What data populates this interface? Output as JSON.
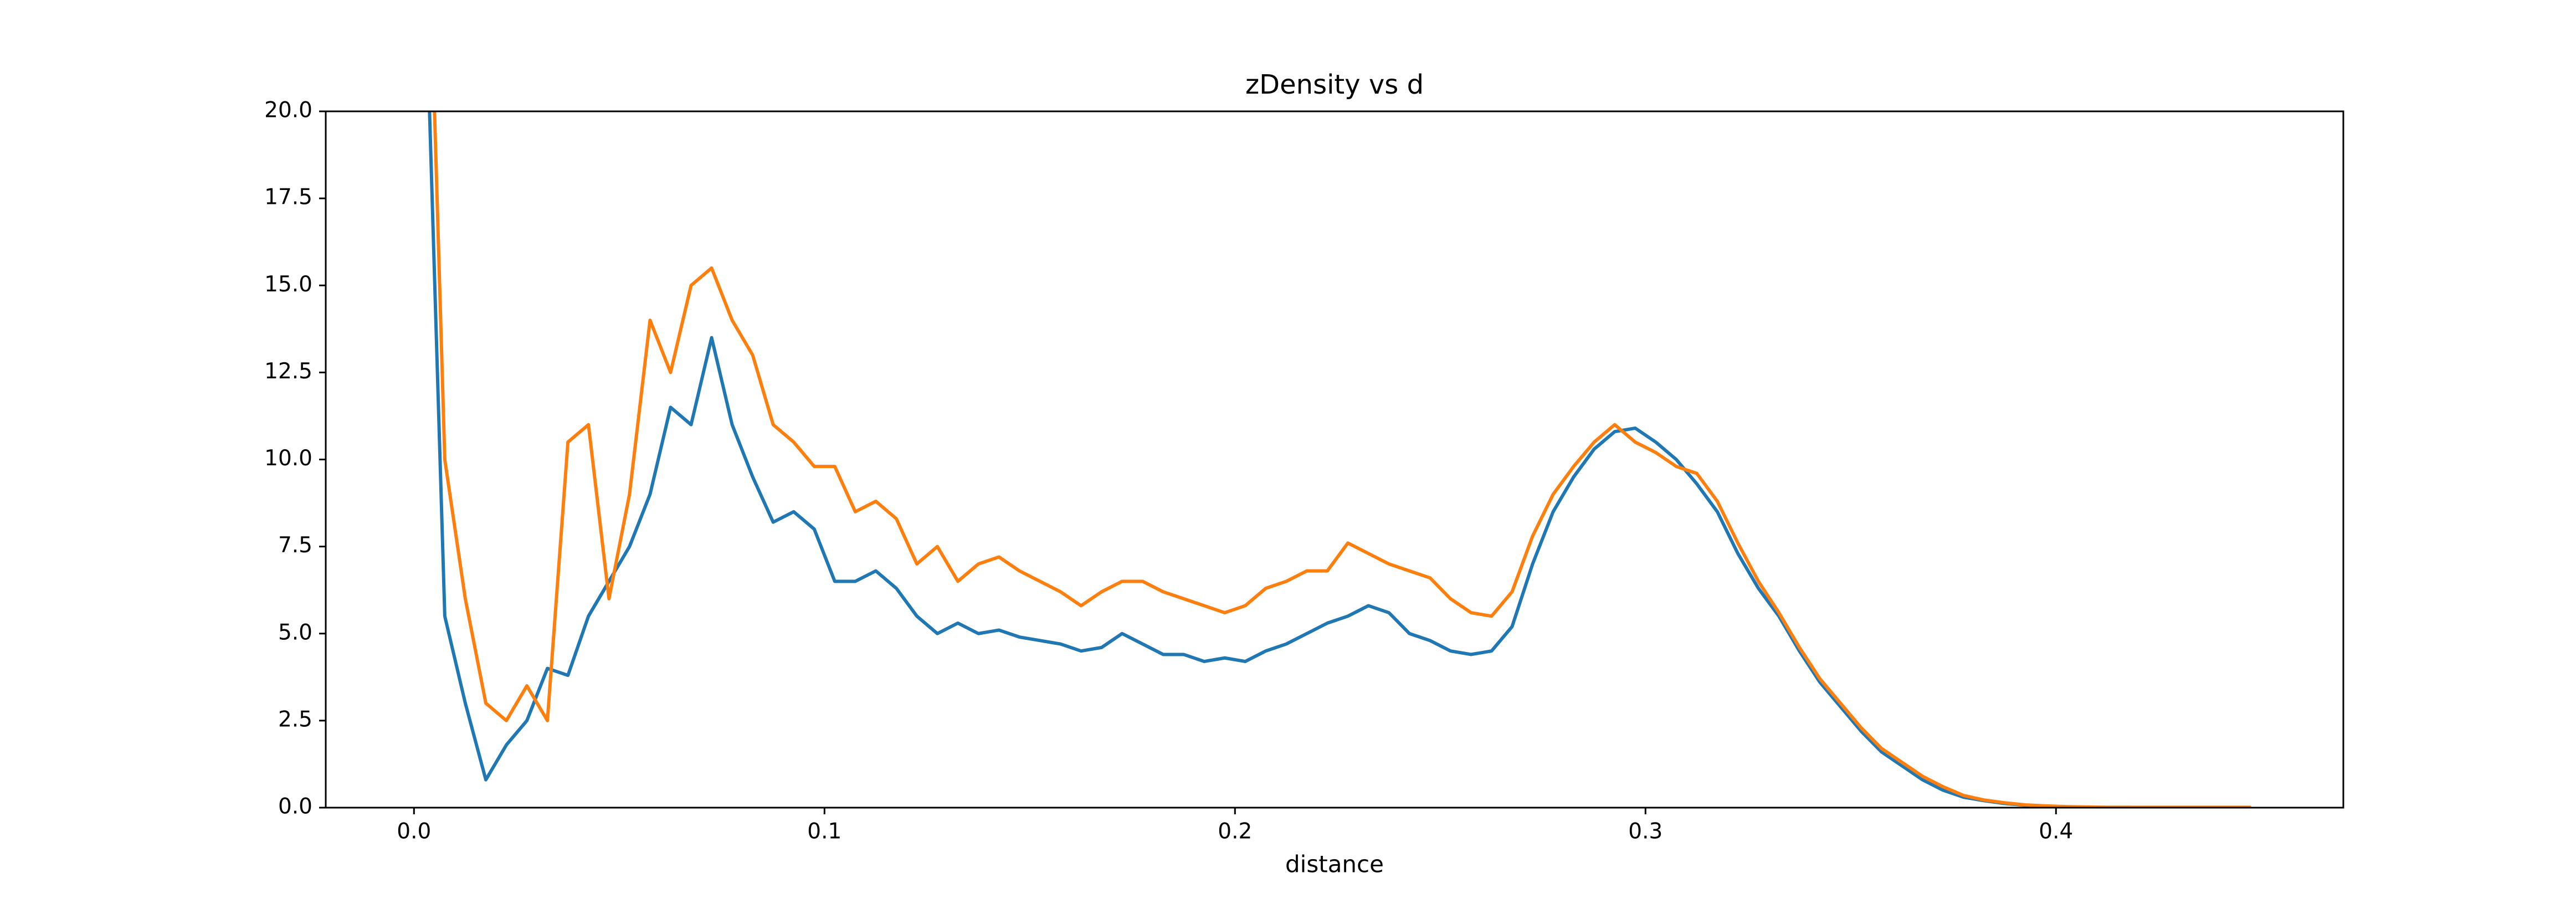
{
  "chart_data": {
    "type": "line",
    "title": "zDensity vs d",
    "x_label": "distance",
    "x": [
      0.0025,
      0.0075,
      0.0125,
      0.0175,
      0.0225,
      0.0275,
      0.0325,
      0.0375,
      0.0425,
      0.0475,
      0.0525,
      0.0575,
      0.0625,
      0.0675,
      0.0725,
      0.0775,
      0.0825,
      0.0875,
      0.0925,
      0.0975,
      0.1025,
      0.1075,
      0.1125,
      0.1175,
      0.1225,
      0.1275,
      0.1325,
      0.1375,
      0.1425,
      0.1475,
      0.1525,
      0.1575,
      0.1625,
      0.1675,
      0.1725,
      0.1775,
      0.1825,
      0.1875,
      0.1925,
      0.1975,
      0.2025,
      0.2075,
      0.2125,
      0.2175,
      0.2225,
      0.2275,
      0.2325,
      0.2375,
      0.2425,
      0.2475,
      0.2525,
      0.2575,
      0.2625,
      0.2675,
      0.2725,
      0.2775,
      0.2825,
      0.2875,
      0.2925,
      0.2975,
      0.3025,
      0.3075,
      0.3125,
      0.3175,
      0.3225,
      0.3275,
      0.3325,
      0.3375,
      0.3425,
      0.3475,
      0.3525,
      0.3575,
      0.3625,
      0.3675,
      0.3725,
      0.3775,
      0.3825,
      0.3875,
      0.3925,
      0.3975,
      0.4025,
      0.4075,
      0.4125,
      0.4175,
      0.4225,
      0.4275,
      0.4325,
      0.4375,
      0.4425,
      0.4475
    ],
    "series": [
      {
        "color": "#1f77b4",
        "values": [
          25,
          5.5,
          3.0,
          0.8,
          1.8,
          2.5,
          4.0,
          3.8,
          5.5,
          6.5,
          7.5,
          9.0,
          11.5,
          11.0,
          13.5,
          11.0,
          9.5,
          8.2,
          8.5,
          8.0,
          6.5,
          6.5,
          6.8,
          6.3,
          5.5,
          5.0,
          5.3,
          5.0,
          5.1,
          4.9,
          4.8,
          4.7,
          4.5,
          4.6,
          5.0,
          4.7,
          4.4,
          4.4,
          4.2,
          4.3,
          4.2,
          4.5,
          4.7,
          5.0,
          5.3,
          5.5,
          5.8,
          5.6,
          5.0,
          4.8,
          4.5,
          4.4,
          4.5,
          5.2,
          7.0,
          8.5,
          9.5,
          10.3,
          10.8,
          10.9,
          10.5,
          10.0,
          9.3,
          8.5,
          7.3,
          6.3,
          5.5,
          4.5,
          3.6,
          2.9,
          2.2,
          1.6,
          1.2,
          0.8,
          0.5,
          0.3,
          0.2,
          0.12,
          0.07,
          0.04,
          0.02,
          0.01,
          0.01,
          0.01,
          0,
          0,
          0,
          0,
          0,
          0
        ]
      },
      {
        "color": "#ff7f0e",
        "values": [
          30,
          10.0,
          6.0,
          3.0,
          2.5,
          3.5,
          2.5,
          10.5,
          11.0,
          6.0,
          9.0,
          14.0,
          12.5,
          15.0,
          15.5,
          14.0,
          13.0,
          11.0,
          10.5,
          9.8,
          9.8,
          8.5,
          8.8,
          8.3,
          7.0,
          7.5,
          6.5,
          7.0,
          7.2,
          6.8,
          6.5,
          6.2,
          5.8,
          6.2,
          6.5,
          6.5,
          6.2,
          6.0,
          5.8,
          5.6,
          5.8,
          6.3,
          6.5,
          6.8,
          6.8,
          7.6,
          7.3,
          7.0,
          6.8,
          6.6,
          6.0,
          5.6,
          5.5,
          6.2,
          7.8,
          9.0,
          9.8,
          10.5,
          11.0,
          10.5,
          10.2,
          9.8,
          9.6,
          8.8,
          7.6,
          6.5,
          5.6,
          4.6,
          3.7,
          3.0,
          2.3,
          1.7,
          1.3,
          0.9,
          0.6,
          0.35,
          0.22,
          0.14,
          0.08,
          0.05,
          0.03,
          0.02,
          0.01,
          0.01,
          0.01,
          0.01,
          0.01,
          0.01,
          0.01,
          0.01
        ]
      }
    ],
    "xlim": [
      -0.0215,
      0.47
    ],
    "xticks": [
      {
        "value": 0,
        "label": "0.0"
      },
      0.1,
      0.2,
      0.3,
      0.4
    ],
    "ylim": [
      0,
      20
    ],
    "yticks": [
      {
        "value": 0,
        "label": "0.0"
      },
      2.5,
      {
        "value": 5,
        "label": "5.0"
      },
      7.5,
      {
        "value": 10,
        "label": "10.0"
      },
      12.5,
      {
        "value": 15,
        "label": "15.0"
      },
      17.5,
      {
        "value": 20,
        "label": "20.0"
      }
    ]
  }
}
